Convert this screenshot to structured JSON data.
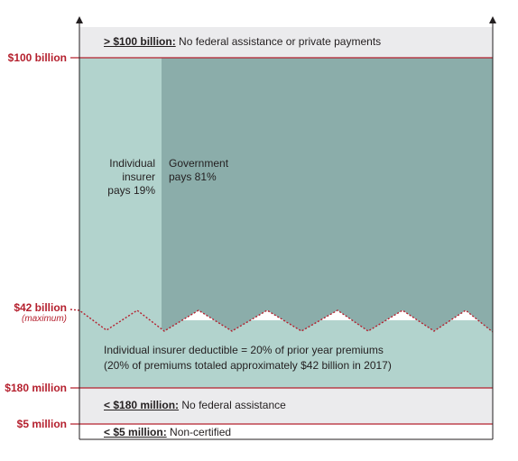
{
  "colors": {
    "band_gray": "#ebebed",
    "insurer_share": "#b2d3cd",
    "government_share": "#8badaa",
    "deductible": "#b2d3cd",
    "threshold_line": "#b5202e",
    "axis": "#231f20"
  },
  "axis_labels": {
    "billion_100": "$100 billion",
    "billion_42": "$42 billion",
    "billion_42_note": "(maximum)",
    "million_180": "$180 million",
    "million_5": "$5 million"
  },
  "bands": {
    "top": {
      "threshold": "> $100 billion:",
      "text": "No federal assistance or private payments"
    },
    "mid": {
      "threshold": "< $180 million:",
      "text": "No federal assistance"
    },
    "bottom": {
      "threshold": "< $5 million:",
      "text": "Non-certified"
    }
  },
  "shares": {
    "insurer": {
      "label": "Individual insurer pays 19%",
      "percent": 19
    },
    "government": {
      "label": "Government pays 81%",
      "percent": 81
    }
  },
  "deductible": {
    "line1": "Individual insurer deductible = 20% of prior year premiums",
    "line2": "(20% of premiums totaled approximately $42 billion in 2017)"
  }
}
